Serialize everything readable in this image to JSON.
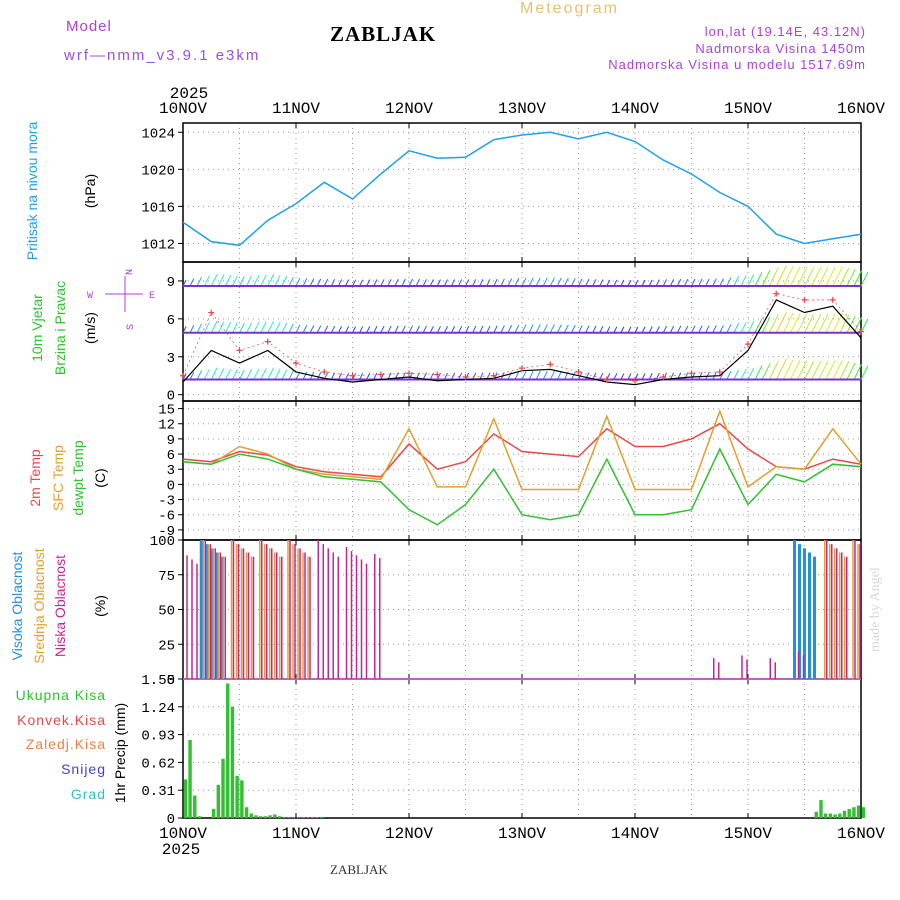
{
  "header": {
    "model_label": "Model",
    "model_name": "wrf—nmm_v3.9.1  e3km",
    "station": "ZABLJAK",
    "product": "Meteogram",
    "lonlat": "lon,lat (19.14E, 43.12N)",
    "altitude": "Nadmorska Visina 1450m",
    "altitude_model": "Nadmorska Visina u modelu 1517.69m"
  },
  "footer_label": "ZABLJAK",
  "credit": "made by Angel",
  "colors": {
    "pressure": "#20a0e8",
    "temp2m": "#e84848",
    "sfctemp": "#e0a030",
    "dewpt": "#30c030",
    "wind_speed": "#000000",
    "gust": "#e84848",
    "cloud_high": "#2090e0",
    "cloud_mid": "#e0a030",
    "cloud_low": "#c02890",
    "precip": "#30c030",
    "label_purple": "#b040d8"
  },
  "chart_data": {
    "type": "line",
    "title": "Meteogram",
    "year": "2025",
    "x_ticks": [
      "10NOV",
      "11NOV",
      "12NOV",
      "13NOV",
      "14NOV",
      "15NOV",
      "16NOV"
    ],
    "hours": [
      0,
      6,
      12,
      18,
      24,
      30,
      36,
      42,
      48,
      54,
      60,
      66,
      72,
      78,
      84,
      90,
      96,
      102,
      108,
      114,
      120,
      126,
      132,
      138,
      144
    ],
    "panels": [
      {
        "id": "pressure",
        "ylabel_title": "Pritisak na nivou mora",
        "ylabel_units": "(hPa)",
        "ylim": [
          1010,
          1025
        ],
        "yticks": [
          1012,
          1016,
          1020,
          1024
        ],
        "series": [
          {
            "name": "Pritisak",
            "values": [
              1014.3,
              1012.2,
              1011.8,
              1014.5,
              1016.3,
              1018.6,
              1016.8,
              1019.5,
              1022,
              1021.2,
              1021.3,
              1023.2,
              1023.7,
              1024,
              1023.3,
              1024,
              1023,
              1021,
              1019.5,
              1017.5,
              1016,
              1013,
              1012,
              1012.5,
              1013
            ]
          }
        ]
      },
      {
        "id": "wind",
        "ylabel_title": "10m Vjetar",
        "ylabel_title2": "Brzina i Pravac",
        "ylabel_units": "(m/s)",
        "compass": [
          "N",
          "W",
          "E",
          "S"
        ],
        "ylim": [
          -0.5,
          10.5
        ],
        "yticks": [
          0,
          3,
          6,
          9
        ],
        "series": [
          {
            "name": "Brzina",
            "values": [
              1,
              3.5,
              2.5,
              3.5,
              1.8,
              1.3,
              1,
              1.2,
              1.4,
              1.1,
              1.2,
              1.3,
              1.9,
              2,
              1.5,
              1,
              0.8,
              1.2,
              1.4,
              1.5,
              3.5,
              7.5,
              6.5,
              7,
              4.5
            ]
          },
          {
            "name": "Udari",
            "values": [
              1.5,
              6.5,
              3.5,
              4.2,
              2.5,
              1.8,
              1.5,
              1.6,
              1.7,
              1.6,
              1.4,
              1.5,
              2.1,
              2.4,
              1.8,
              1.2,
              1.1,
              1.4,
              1.7,
              1.8,
              4,
              8,
              7.5,
              7.5,
              5
            ]
          }
        ]
      },
      {
        "id": "temperature",
        "ylabel_title": "2m Temp",
        "ylabel_title2": "SFC Temp",
        "ylabel_title3": "dewpt Temp",
        "ylabel_units": "(C)",
        "ylim": [
          -11,
          16.5
        ],
        "yticks": [
          -9,
          -6,
          -3,
          0,
          3,
          6,
          9,
          12,
          15
        ],
        "series": [
          {
            "name": "2m Temp",
            "values": [
              5,
              4.5,
              6.5,
              5.8,
              3.5,
              2.5,
              2,
              1.5,
              8,
              3,
              4.5,
              10,
              6.5,
              6,
              5.5,
              11,
              7.5,
              7.5,
              9,
              12,
              7,
              3.5,
              3,
              5,
              4
            ]
          },
          {
            "name": "SFC Temp",
            "values": [
              4.5,
              4,
              7.5,
              6,
              3,
              2,
              1.5,
              1,
              11,
              -0.5,
              -0.5,
              13,
              -1,
              -1,
              -1,
              13.5,
              -1,
              -1,
              -1,
              14.5,
              -0.5,
              3.5,
              3,
              11,
              4
            ]
          },
          {
            "name": "dewpt Temp",
            "values": [
              4.5,
              4,
              6,
              5,
              3,
              1.5,
              1,
              0.5,
              -5,
              -8,
              -4,
              3,
              -6,
              -7,
              -6,
              5,
              -6,
              -6,
              -5,
              7,
              -4,
              2,
              0.5,
              4,
              3.5
            ]
          }
        ]
      },
      {
        "id": "clouds",
        "ylabel_title": "Visoka Oblacnost",
        "ylabel_title2": "Srednja Oblacnost",
        "ylabel_title3": "Niska Oblacnost",
        "ylabel_units": "(%)",
        "ylim": [
          0,
          100
        ],
        "yticks": [
          0,
          25,
          50,
          75,
          100
        ],
        "series": [
          {
            "name": "Visoka",
            "values": [
              0,
              100,
              0,
              0,
              0,
              0,
              0,
              0,
              0,
              0,
              0,
              0,
              0,
              0,
              0,
              0,
              0,
              0,
              0,
              0,
              0,
              0,
              100,
              0,
              0
            ]
          },
          {
            "name": "Srednja",
            "values": [
              0,
              100,
              100,
              100,
              100,
              0,
              0,
              0,
              0,
              0,
              0,
              0,
              0,
              0,
              0,
              0,
              0,
              0,
              0,
              0,
              0,
              0,
              0,
              100,
              100
            ]
          },
          {
            "name": "Niska",
            "values": [
              95,
              100,
              100,
              100,
              100,
              100,
              95,
              90,
              0,
              0,
              0,
              0,
              0,
              0,
              0,
              0,
              0,
              0,
              0,
              15,
              17,
              15,
              20,
              100,
              100
            ]
          }
        ]
      },
      {
        "id": "precip",
        "ylabel_title": "1hr Precip (mm)",
        "ylim": [
          0,
          1.55
        ],
        "yticks": [
          0,
          0.31,
          0.62,
          0.93,
          1.24,
          1.55
        ],
        "legend": [
          "Ukupna Kisa",
          "Konvek.Kisa",
          "Zaledj.Kisa",
          "Snijeg",
          "Grad"
        ],
        "series": [
          {
            "name": "Ukupna Kisa",
            "values": [
              0.43,
              0.87,
              0.25,
              0.02,
              0,
              0,
              0.1,
              0.37,
              0.66,
              1.5,
              1.24,
              0.47,
              0.42,
              0.12,
              0.05,
              0.03,
              0.02,
              0.02,
              0.03,
              0.04,
              0.02,
              0.01,
              0.01,
              0.01,
              0.01,
              0.01,
              0.01,
              0.01,
              0.01,
              0.01,
              0,
              0,
              0,
              0,
              0,
              0,
              0,
              0,
              0,
              0,
              0,
              0,
              0,
              0,
              0,
              0,
              0,
              0,
              0,
              0,
              0,
              0,
              0,
              0,
              0,
              0,
              0,
              0,
              0,
              0,
              0,
              0,
              0,
              0,
              0,
              0,
              0,
              0,
              0,
              0,
              0,
              0,
              0,
              0,
              0,
              0,
              0,
              0,
              0,
              0,
              0,
              0,
              0,
              0,
              0,
              0,
              0,
              0,
              0,
              0,
              0,
              0,
              0,
              0,
              0,
              0,
              0,
              0,
              0,
              0,
              0,
              0,
              0,
              0,
              0,
              0,
              0,
              0,
              0,
              0,
              0,
              0,
              0,
              0,
              0,
              0,
              0,
              0,
              0,
              0,
              0,
              0,
              0,
              0,
              0,
              0,
              0,
              0,
              0,
              0,
              0,
              0,
              0,
              0,
              0.07,
              0.2,
              0.05,
              0.05,
              0.04,
              0.05,
              0.08,
              0.1,
              0.12,
              0.14,
              0.12
            ]
          }
        ]
      }
    ]
  }
}
